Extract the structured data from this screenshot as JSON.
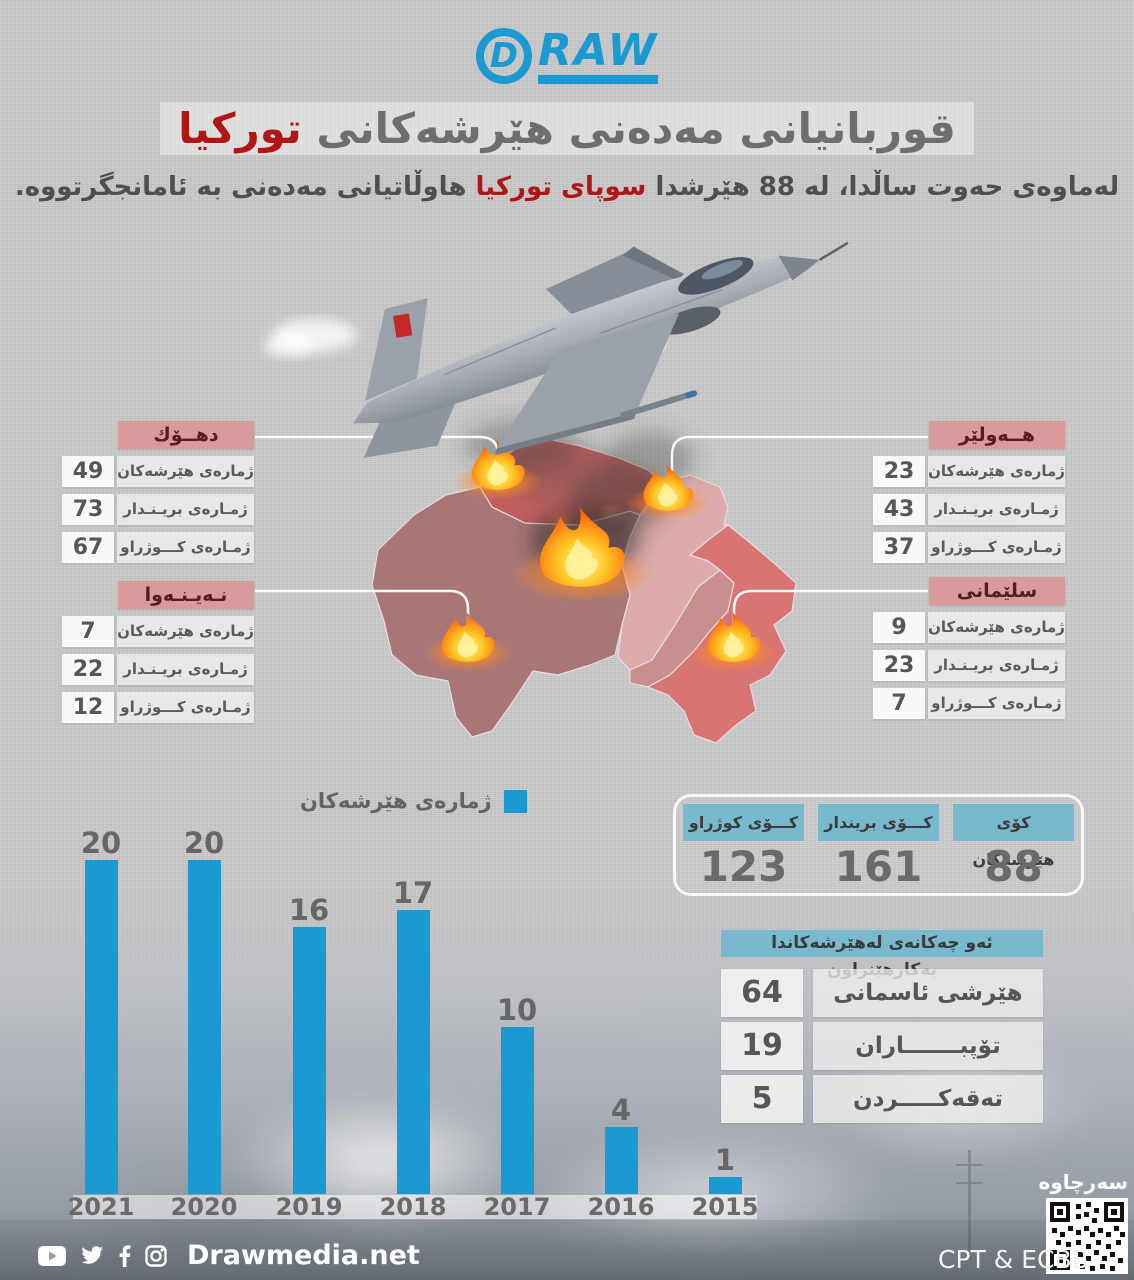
{
  "logo": {
    "d_letter": "D",
    "brand": "RAW"
  },
  "title": {
    "pre": "قوربانيانى مەدەنى هێرشەكانى",
    "highlight": "توركيا"
  },
  "subtitle": {
    "pre": "لەماوەى حەوت ساڵدا، لە 88 هێرشدا",
    "highlight": "سوپاى توركيا",
    "post": "هاوڵاتيانى مەدەنى بە ئامانجگرتووە."
  },
  "regions": [
    {
      "name": "دهــۆك",
      "stats": [
        {
          "label": "ژمارەى هێرشەكان",
          "value": "49"
        },
        {
          "label": "ژمـارەى بريـنـدار",
          "value": "73"
        },
        {
          "label": "ژمـارەى كـــوژراو",
          "value": "67"
        }
      ]
    },
    {
      "name": "هــەولێر",
      "stats": [
        {
          "label": "ژمارەى هێرشەكان",
          "value": "23"
        },
        {
          "label": "ژمـارەى بريـنـدار",
          "value": "43"
        },
        {
          "label": "ژمـارەى كـــوژراو",
          "value": "37"
        }
      ]
    },
    {
      "name": "نـەيـنـەوا",
      "stats": [
        {
          "label": "ژمارەى هێرشەكان",
          "value": "7"
        },
        {
          "label": "ژمـارەى بريـنـدار",
          "value": "22"
        },
        {
          "label": "ژمـارەى كـــوژراو",
          "value": "12"
        }
      ]
    },
    {
      "name": "سلێمانى",
      "stats": [
        {
          "label": "ژمارەى هێرشەكان",
          "value": "9"
        },
        {
          "label": "ژمـارەى بريـنـدار",
          "value": "23"
        },
        {
          "label": "ژمـارەى كـــوژراو",
          "value": "7"
        }
      ]
    }
  ],
  "totals": [
    {
      "label": "كۆى هێرشەكان",
      "value": "88"
    },
    {
      "label": "كـــۆى بريندار",
      "value": "161"
    },
    {
      "label": "كـــۆى كوژراو",
      "value": "123"
    }
  ],
  "weapons": {
    "header": "ئەو چەكانەى لەهێرشەكاندا بەكارهێنراون",
    "rows": [
      {
        "label": "هێرشى ئاسمانى",
        "value": "64"
      },
      {
        "label": "تۆپبـــــــاران",
        "value": "19"
      },
      {
        "label": "تەقەكـــــردن",
        "value": "5"
      }
    ]
  },
  "chart_data": {
    "type": "bar",
    "categories": [
      "2021",
      "2020",
      "2019",
      "2018",
      "2017",
      "2016",
      "2015"
    ],
    "values": [
      20,
      20,
      16,
      17,
      10,
      4,
      1
    ],
    "title": "",
    "xlabel": "",
    "ylabel": "",
    "ylim": [
      0,
      20
    ],
    "grid": false,
    "legend": "ژمارەى هێرشەكان",
    "legend_position": "top",
    "bar_color": "#1b9ad2"
  },
  "footer": {
    "site": "Drawmedia.net",
    "source_label": "سەرچاوە",
    "credit": "CPT & ECBB",
    "icons": [
      "youtube-icon",
      "twitter-icon",
      "facebook-icon",
      "instagram-icon"
    ]
  },
  "colors": {
    "accent_blue": "#1b9ad2",
    "panel_header_blue": "#79b9ce",
    "region_header_pink": "#d89a9a",
    "highlight_red": "#b01616",
    "map_nineveh": "#a87676",
    "map_duhok": "#c26060",
    "map_erbil": "#dcacac",
    "map_kirkuk": "#c98e8e",
    "map_sulaymani": "#d87474"
  }
}
